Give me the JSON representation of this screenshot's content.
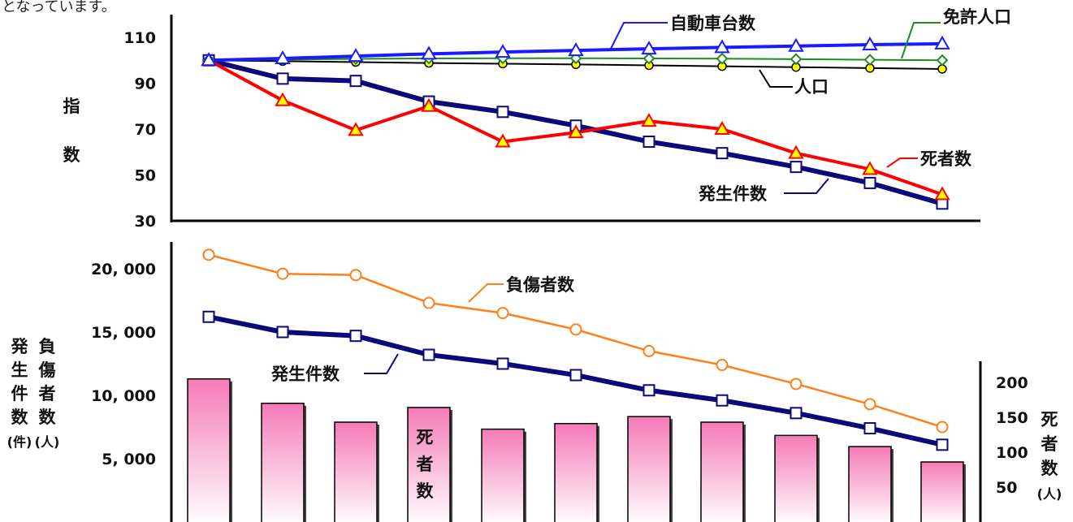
{
  "top_text": "となっています。",
  "chart_data": [
    {
      "type": "line",
      "title": "",
      "ylabel_chars": [
        "指",
        "数"
      ],
      "ylim": [
        30,
        110
      ],
      "yticks": [
        "110",
        "90",
        "70",
        "50",
        "30"
      ],
      "x": [
        1,
        2,
        3,
        4,
        5,
        6,
        7,
        8,
        9,
        10,
        11
      ],
      "legend": "inline labels",
      "series": [
        {
          "name": "自動車台数",
          "color": "#1a1aff",
          "marker": "triangle-open",
          "values": [
            100,
            100.8,
            101.8,
            102.8,
            103.6,
            104.3,
            105,
            105.6,
            106.2,
            106.8,
            107.2
          ]
        },
        {
          "name": "免許人口",
          "color": "#1e8c1e",
          "marker": "diamond-open",
          "values": [
            100,
            100.3,
            100.6,
            100.8,
            100.9,
            100.9,
            100.8,
            100.7,
            100.5,
            100.2,
            100.0
          ]
        },
        {
          "name": "人口",
          "color": "#000000",
          "marker": "circle-yellow",
          "values": [
            100,
            99.6,
            99.2,
            98.8,
            98.5,
            98.2,
            97.8,
            97.4,
            97.0,
            96.6,
            96.2
          ]
        },
        {
          "name": "死者数",
          "color": "#ff0000",
          "marker": "triangle-yellow",
          "values": [
            100,
            82.5,
            69.5,
            80,
            64.5,
            68.5,
            73.5,
            70,
            59.5,
            52.5,
            41.5
          ]
        },
        {
          "name": "発生件数",
          "color": "#0a0a7a",
          "marker": "square-open",
          "values": [
            100,
            92,
            91,
            82,
            77.5,
            71.5,
            64.5,
            59.5,
            53.5,
            46.5,
            37.5
          ]
        }
      ]
    },
    {
      "type": "bar",
      "title": "",
      "left_axis": {
        "label_col1": [
          "発",
          "生",
          "件",
          "数",
          "(件)"
        ],
        "label_col2": [
          "負",
          "傷",
          "者",
          "数",
          "(人)"
        ],
        "yticks": [
          "20, 000",
          "15, 000",
          "10, 000",
          "5, 000"
        ],
        "ylim": [
          0,
          20000
        ]
      },
      "right_axis": {
        "label": [
          "死",
          "者",
          "数",
          "(人)"
        ],
        "yticks": [
          "200",
          "150",
          "100",
          "50"
        ],
        "ylim": [
          0,
          200
        ]
      },
      "bar_label_chars": [
        "死",
        "者",
        "数"
      ],
      "bars": {
        "name": "死者数",
        "values": [
          205,
          170,
          143,
          164,
          133,
          141,
          151,
          143,
          124,
          108,
          86
        ]
      },
      "series": [
        {
          "name": "負傷者数",
          "color": "#ff7f1a",
          "marker": "circle-open",
          "values": [
            21100,
            19600,
            19500,
            17300,
            16500,
            15200,
            13500,
            12400,
            10900,
            9300,
            7500
          ]
        },
        {
          "name": "発生件数",
          "color": "#0a0a7a",
          "marker": "square-open",
          "values": [
            16200,
            15000,
            14700,
            13200,
            12500,
            11600,
            10400,
            9600,
            8600,
            7400,
            6100
          ]
        }
      ]
    }
  ]
}
